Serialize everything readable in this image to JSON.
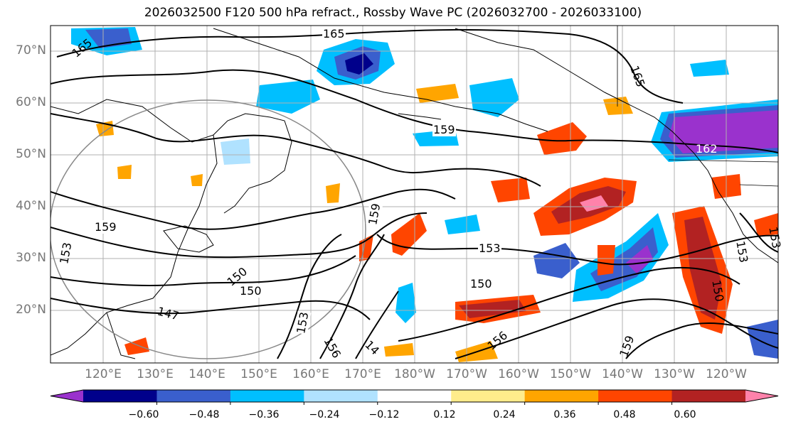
{
  "title": "2026032500 F120 500 hPa refract., Rossby Wave PC (2026032700 - 2026033100)",
  "lat_ticks": [
    "70°N",
    "60°N",
    "50°N",
    "40°N",
    "30°N",
    "20°N"
  ],
  "lon_ticks": [
    "120°E",
    "130°E",
    "140°E",
    "150°E",
    "160°E",
    "170°E",
    "180°W",
    "170°W",
    "160°W",
    "150°W",
    "140°W",
    "130°W",
    "120°W"
  ],
  "contour_labels": [
    "165",
    "165",
    "165",
    "159",
    "162",
    "159",
    "153",
    "159",
    "153",
    "150",
    "150",
    "150",
    "147",
    "153",
    "156",
    "14",
    "156",
    "159",
    "150",
    "153",
    "153"
  ],
  "colorbar": {
    "colors": [
      "#9a32cd",
      "#00008b",
      "#3a5fcd",
      "#00bfff",
      "#b0e2ff",
      "#ffffff",
      "#ffec8b",
      "#ffa500",
      "#ff4500",
      "#b22222",
      "#ff82ab"
    ],
    "labels": [
      "−0.60",
      "−0.48",
      "−0.36",
      "−0.24",
      "−0.12",
      "0.12",
      "0.24",
      "0.36",
      "0.48",
      "0.60"
    ]
  }
}
